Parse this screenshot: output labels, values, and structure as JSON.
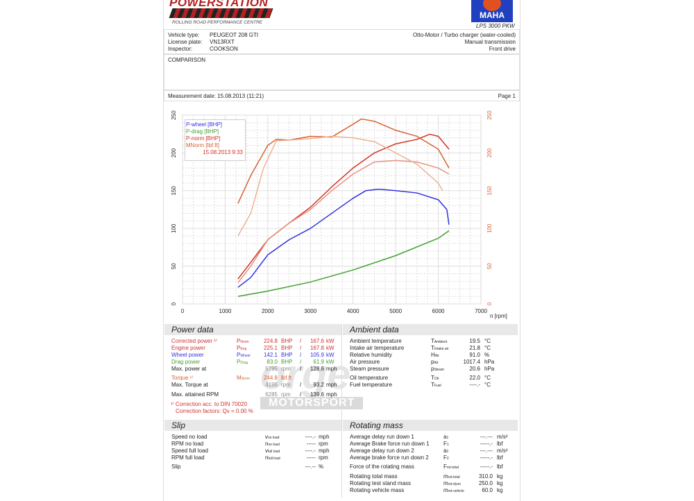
{
  "header": {
    "brand": "POWERSTATION",
    "brand_sub": "ROLLING ROAD PERFORMANCE CENTRE",
    "dyno_brand": "MAHA",
    "dyno_model": "LPS 3000 PKW"
  },
  "vehicle": {
    "type_label": "Vehicle type:",
    "type": "PEUGEOT 208 GTI",
    "plate_label": "License plate:",
    "plate": "VN13RXT",
    "inspector_label": "Inspector:",
    "inspector": "COOKSON",
    "engine": "Otto-Motor / Turbo charger (water-cooled)",
    "transmission": "Manual transmission",
    "drive": "Front drive"
  },
  "comment": "COMPARISON",
  "measurement_date": "Measurement date: 15.08.2013 (11:21)",
  "page": "Page 1",
  "chart_data": {
    "type": "line",
    "xlabel": "n [rpm]",
    "xlim": [
      0,
      7000
    ],
    "ylim": [
      0,
      250
    ],
    "xticks": [
      0,
      1000,
      2000,
      3000,
      4000,
      5000,
      6000,
      7000
    ],
    "yticks": [
      0,
      50,
      100,
      150,
      200,
      250
    ],
    "grid": true,
    "legend": "top-left",
    "legend_entries": [
      "P-wheel [BHP]",
      "P-drag [BHP]",
      "P-norm [BHP]",
      "MNorm [lbf.ft]"
    ],
    "legend_date": "15.08.2013 9:33",
    "series": [
      {
        "name": "P-wheel [BHP]",
        "color": "#3030e0",
        "x": [
          1300,
          1600,
          2000,
          2500,
          3000,
          3500,
          4000,
          4300,
          4600,
          5000,
          5500,
          6000,
          6200,
          6250
        ],
        "y": [
          22,
          35,
          65,
          85,
          100,
          120,
          140,
          150,
          152,
          150,
          147,
          138,
          125,
          105
        ]
      },
      {
        "name": "P-drag [BHP]",
        "color": "#40a030",
        "x": [
          1300,
          2000,
          3000,
          4000,
          5000,
          6000,
          6250
        ],
        "y": [
          10,
          17,
          29,
          45,
          64,
          87,
          97
        ]
      },
      {
        "name": "P-norm [BHP]",
        "color": "#d03020",
        "x": [
          1300,
          1600,
          2000,
          2500,
          3000,
          3500,
          4000,
          4500,
          5000,
          5500,
          5800,
          6000,
          6250
        ],
        "y": [
          33,
          55,
          85,
          107,
          128,
          155,
          180,
          200,
          212,
          218,
          224.8,
          222,
          205
        ]
      },
      {
        "color": "#e89080",
        "x": [
          1300,
          1600,
          2000,
          2500,
          3000,
          3500,
          4000,
          4500,
          5000,
          5500,
          6000,
          6250
        ],
        "y": [
          28,
          50,
          85,
          107,
          125,
          150,
          172,
          188,
          190,
          188,
          180,
          172
        ]
      },
      {
        "name": "MNorm [lbf.ft]",
        "color": "#d86030",
        "x": [
          1300,
          1600,
          2000,
          2200,
          2500,
          3000,
          3500,
          4000,
          4195,
          4500,
          5000,
          5500,
          6000,
          6250
        ],
        "y": [
          133,
          170,
          210,
          218,
          217,
          222,
          221,
          238,
          245,
          242,
          230,
          222,
          205,
          180
        ]
      },
      {
        "color": "#f0b090",
        "x": [
          1300,
          1600,
          1900,
          2200,
          2500,
          3000,
          3500,
          4000,
          4500,
          5000,
          5500,
          6000,
          6100
        ],
        "y": [
          90,
          120,
          180,
          216,
          217,
          219,
          222,
          220,
          215,
          200,
          185,
          160,
          150
        ]
      }
    ]
  },
  "power": {
    "title": "Power data",
    "rows": [
      {
        "label": "Corrected power ¹⁾",
        "sym": "P",
        "sub": "Norm",
        "v1": "224.8",
        "u1": "BHP",
        "sep": "/",
        "v2": "167.6",
        "u2": "kW",
        "color": "#d03030"
      },
      {
        "label": "Engine power",
        "sym": "P",
        "sub": "Eng",
        "v1": "225.1",
        "u1": "BHP",
        "sep": "/",
        "v2": "167.8",
        "u2": "kW",
        "color": "#d03030"
      },
      {
        "label": "Wheel power",
        "sym": "P",
        "sub": "Wheel",
        "v1": "142.1",
        "u1": "BHP",
        "sep": "/",
        "v2": "105.9",
        "u2": "kW",
        "color": "#3030e0"
      },
      {
        "label": "Drag power",
        "sym": "P",
        "sub": "Drag",
        "v1": "83.0",
        "u1": "BHP",
        "sep": "/",
        "v2": "61.9",
        "u2": "kW",
        "color": "#40a030"
      },
      {
        "label": "Max. power at",
        "sym": "",
        "sub": "",
        "v1": "5795",
        "u1": "rpm",
        "sep": "/",
        "v2": "128.6",
        "u2": "mph",
        "color": "#222"
      },
      {
        "label": "Torque ¹⁾",
        "sym": "M",
        "sub": "Norm",
        "v1": "244.8",
        "u1": "lbf.ft",
        "sep": "",
        "v2": "",
        "u2": "",
        "color": "#d86030"
      },
      {
        "label": "Max. Torque at",
        "sym": "",
        "sub": "",
        "v1": "4195",
        "u1": "rpm",
        "sep": "/",
        "v2": "93.2",
        "u2": "mph",
        "color": "#222"
      },
      {
        "label": "Max. attained RPM",
        "sym": "",
        "sub": "",
        "v1": "6285",
        "u1": "rpm",
        "sep": "/",
        "v2": "139.6",
        "u2": "mph",
        "color": "#222"
      }
    ],
    "note1": "¹⁾ Correction acc. to DIN 70020",
    "note2": "Correction factors: Qv =   0.00 %"
  },
  "ambient": {
    "title": "Ambient data",
    "rows": [
      {
        "label": "Ambient temperature",
        "sym": "T",
        "sub": "Ambient",
        "v": "19.5",
        "u": "°C"
      },
      {
        "label": "Intake air temperature",
        "sym": "T",
        "sub": "Intake air",
        "v": "21.8",
        "u": "°C"
      },
      {
        "label": "Relative humidity",
        "sym": "H",
        "sub": "Air",
        "v": "91.0",
        "u": "%"
      },
      {
        "label": "Air pressure",
        "sym": "p",
        "sub": "Air",
        "v": "1017.4",
        "u": "hPa"
      },
      {
        "label": "Steam pressure",
        "sym": "p",
        "sub": "Steam",
        "v": "20.6",
        "u": "hPa"
      },
      {
        "label": "Oil temperature",
        "sym": "T",
        "sub": "Oil",
        "v": "22.0",
        "u": "°C"
      },
      {
        "label": "Fuel temperature",
        "sym": "T",
        "sub": "Fuel",
        "v": "----.-",
        "u": "°C"
      }
    ]
  },
  "slip": {
    "title": "Slip",
    "rows": [
      {
        "label": "Speed no load",
        "sym": "v",
        "sub": "no load",
        "v": "----.-",
        "u": "mph"
      },
      {
        "label": "RPM no load",
        "sym": "n",
        "sub": "no load",
        "v": "-----",
        "u": "rpm"
      },
      {
        "label": "Speed full load",
        "sym": "v",
        "sub": "full load",
        "v": "----.-",
        "u": "mph"
      },
      {
        "label": "RPM full load",
        "sym": "n",
        "sub": "full load",
        "v": "-----",
        "u": "rpm"
      },
      {
        "label": "Slip",
        "sym": "",
        "sub": "",
        "v": "---.--",
        "u": "%"
      }
    ]
  },
  "rotating": {
    "title": "Rotating mass",
    "rows": [
      {
        "label": "Average delay run down 1",
        "sym": "a",
        "sub": "1",
        "v": "---.---",
        "u": "m/s²"
      },
      {
        "label": "Average Brake force run down 1",
        "sym": "F",
        "sub": "1",
        "v": "-----.-",
        "u": "lbf"
      },
      {
        "label": "Average delay run down 2",
        "sym": "a",
        "sub": "2",
        "v": "---.---",
        "u": "m/s²"
      },
      {
        "label": "Average brake force run down 2",
        "sym": "F",
        "sub": "2",
        "v": "-----.-",
        "u": "lbf"
      },
      {
        "label": "Force of the rotating mass",
        "sym": "F",
        "sub": "rot-total",
        "v": "-----.-",
        "u": "lbf"
      },
      {
        "label": "Rotating total mass",
        "sym": "m",
        "sub": "rot-total",
        "v": "310.0",
        "u": "kg"
      },
      {
        "label": "Rotating test stand mass",
        "sym": "m",
        "sub": "rot-dyno",
        "v": "250.0",
        "u": "kg"
      },
      {
        "label": "Rotating vehicle mass",
        "sym": "m",
        "sub": "rot-vehicle",
        "v": "60.0",
        "u": "kg"
      }
    ]
  },
  "watermark": {
    "big": "orge",
    "small": "MOTORSPORT"
  }
}
